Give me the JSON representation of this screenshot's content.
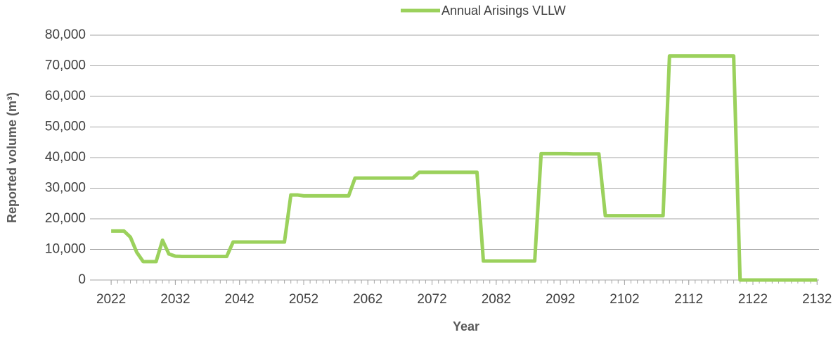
{
  "chart_data": {
    "type": "line",
    "xlabel": "Year",
    "ylabel": "Reported volume (m³)",
    "x": [
      2022,
      2023,
      2024,
      2025,
      2026,
      2027,
      2028,
      2029,
      2030,
      2031,
      2032,
      2033,
      2034,
      2035,
      2036,
      2037,
      2038,
      2039,
      2040,
      2041,
      2042,
      2043,
      2044,
      2045,
      2046,
      2047,
      2048,
      2049,
      2050,
      2051,
      2052,
      2053,
      2054,
      2055,
      2056,
      2057,
      2058,
      2059,
      2060,
      2061,
      2062,
      2063,
      2064,
      2065,
      2066,
      2067,
      2068,
      2069,
      2070,
      2071,
      2072,
      2073,
      2074,
      2075,
      2076,
      2077,
      2078,
      2079,
      2080,
      2081,
      2082,
      2083,
      2084,
      2085,
      2086,
      2087,
      2088,
      2089,
      2090,
      2091,
      2092,
      2093,
      2094,
      2095,
      2096,
      2097,
      2098,
      2099,
      2100,
      2101,
      2102,
      2103,
      2104,
      2105,
      2106,
      2107,
      2108,
      2109,
      2110,
      2111,
      2112,
      2113,
      2114,
      2115,
      2116,
      2117,
      2118,
      2119,
      2120,
      2121,
      2122,
      2123,
      2124,
      2125,
      2126,
      2127,
      2128,
      2129,
      2130,
      2131,
      2132
    ],
    "series": [
      {
        "name": "Annual Arisings VLLW",
        "color": "#9bd15c",
        "values": [
          16000,
          16000,
          16000,
          14000,
          9000,
          6000,
          6000,
          6000,
          13000,
          8500,
          7800,
          7700,
          7700,
          7700,
          7700,
          7700,
          7700,
          7700,
          7700,
          12400,
          12400,
          12400,
          12400,
          12400,
          12400,
          12400,
          12400,
          12400,
          27800,
          27800,
          27500,
          27500,
          27500,
          27500,
          27500,
          27500,
          27500,
          27500,
          33300,
          33300,
          33300,
          33300,
          33300,
          33300,
          33300,
          33300,
          33300,
          33300,
          35200,
          35200,
          35200,
          35200,
          35200,
          35200,
          35200,
          35200,
          35200,
          35200,
          6200,
          6200,
          6200,
          6200,
          6200,
          6200,
          6200,
          6200,
          6200,
          41300,
          41300,
          41300,
          41300,
          41300,
          41200,
          41200,
          41200,
          41200,
          41200,
          21000,
          21000,
          21000,
          21000,
          21000,
          21000,
          21000,
          21000,
          21000,
          21000,
          73200,
          73200,
          73200,
          73200,
          73200,
          73200,
          73200,
          73200,
          73200,
          73200,
          73200,
          0,
          0,
          0,
          0,
          0,
          0,
          0,
          0,
          0,
          0,
          0,
          0,
          0
        ]
      }
    ],
    "xlim": [
      2018.7,
      2132.3
    ],
    "xticks": [
      2022,
      2032,
      2042,
      2052,
      2062,
      2072,
      2082,
      2092,
      2102,
      2112,
      2122,
      2132
    ],
    "ylim": [
      0,
      80000
    ],
    "yticks": [
      0,
      {
        "value": 10000,
        "label": "10,000"
      },
      {
        "value": 20000,
        "label": "20,000"
      },
      {
        "value": 30000,
        "label": "30,000"
      },
      {
        "value": 40000,
        "label": "40,000"
      },
      {
        "value": 50000,
        "label": "50,000"
      },
      {
        "value": 60000,
        "label": "60,000"
      },
      {
        "value": 70000,
        "label": "70,000"
      },
      {
        "value": 80000,
        "label": "80,000"
      }
    ],
    "grid": true,
    "legend": "top"
  }
}
